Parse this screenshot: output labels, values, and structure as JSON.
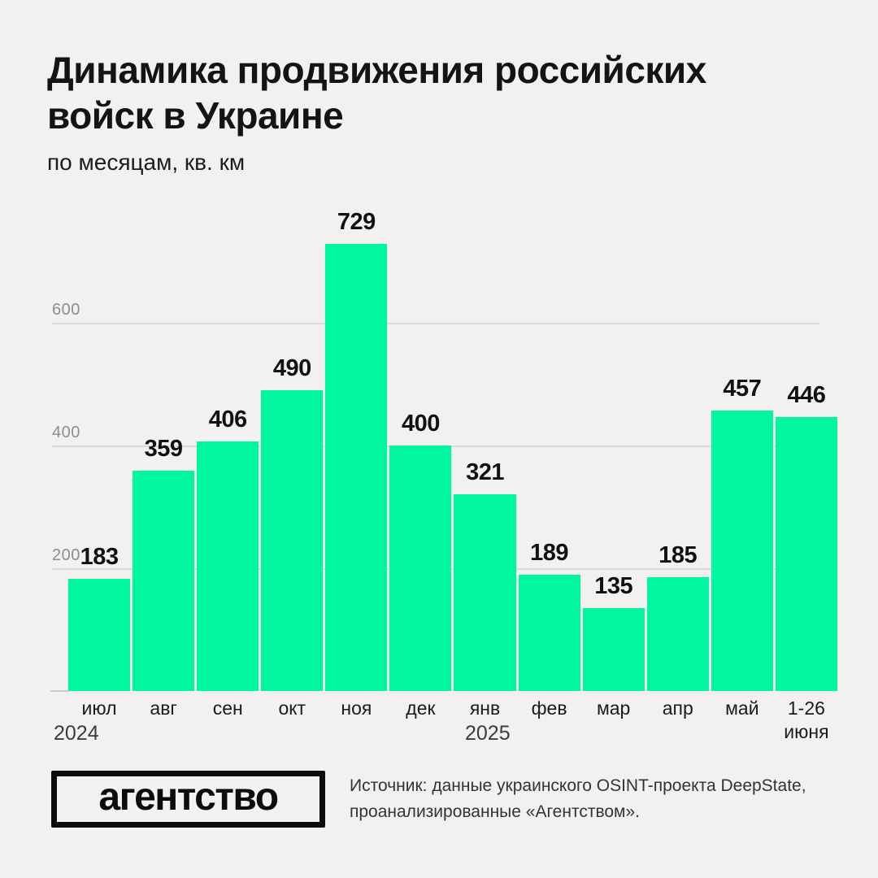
{
  "title": "Динамика продвижения российских войск в Украине",
  "subtitle": "по месяцам, кв. км",
  "chart_data": {
    "type": "bar",
    "title": "Динамика продвижения российских войск в Украине",
    "subtitle": "по месяцам, кв. км",
    "categories": [
      "июл",
      "авг",
      "сен",
      "окт",
      "ноя",
      "дек",
      "янв",
      "фев",
      "мар",
      "апр",
      "май",
      "1-26 июня"
    ],
    "values": [
      183,
      359,
      406,
      490,
      729,
      400,
      321,
      189,
      135,
      185,
      457,
      446
    ],
    "year_markers": [
      {
        "label": "2024",
        "category_index": 0
      },
      {
        "label": "2025",
        "category_index": 6
      }
    ],
    "xlabel": "",
    "ylabel": "кв. км",
    "yticks": [
      200,
      400,
      600
    ],
    "ylim": [
      0,
      810
    ],
    "grid": "horizontal",
    "value_labels": true,
    "legend": "none",
    "bar_color": "#00f7a0",
    "background_color": "#f2f1ef"
  },
  "footer": {
    "logo_text": "агентство",
    "source_text": "Источник: данные украинского OSINT-проекта DeepState, проанализированные «Агентством»."
  },
  "colors": {
    "bar": "#00f7a0",
    "background": "#f2f1ef",
    "title": "#141414",
    "gridline": "#dad9d7",
    "tick_label": "#8e8e8e"
  }
}
